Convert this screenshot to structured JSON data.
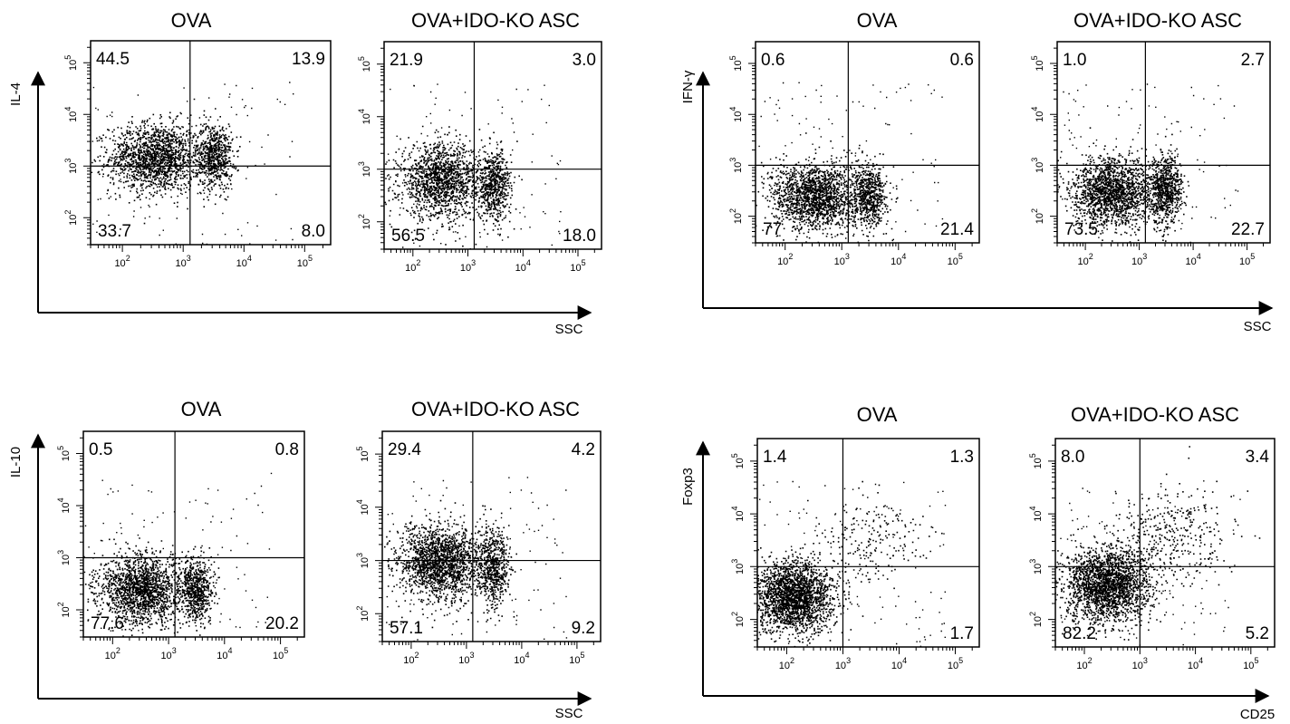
{
  "chart_data": [
    {
      "type": "scatter",
      "description_group": "IL-4 vs SSC",
      "ylabel": "IL-4",
      "xlabel": "SSC",
      "x_scale": "log",
      "y_scale": "log",
      "x_tick_labels": [
        "10^2",
        "10^3",
        "10^4",
        "10^5"
      ],
      "y_tick_labels": [
        "10^2",
        "10^3",
        "10^4",
        "10^5"
      ],
      "panels": [
        {
          "title": "OVA",
          "gate": {
            "x": 1300,
            "y": 1000
          },
          "quadrants": {
            "upper_left": "44.5",
            "upper_right": "13.9",
            "lower_left": "33.7",
            "lower_right": "8.0"
          },
          "clusters": [
            {
              "x": 350,
              "y": 1500,
              "spread_x": 0.38,
              "spread_y": 0.33,
              "n": 1600
            },
            {
              "x": 3200,
              "y": 1600,
              "spread_x": 0.15,
              "spread_y": 0.32,
              "n": 650
            }
          ]
        },
        {
          "title": "OVA+IDO-KO ASC",
          "gate": {
            "x": 1300,
            "y": 1000
          },
          "quadrants": {
            "upper_left": "21.9",
            "upper_right": "3.0",
            "lower_left": "56.5",
            "lower_right": "18.0"
          },
          "clusters": [
            {
              "x": 320,
              "y": 600,
              "spread_x": 0.38,
              "spread_y": 0.35,
              "n": 1500
            },
            {
              "x": 3000,
              "y": 500,
              "spread_x": 0.15,
              "spread_y": 0.33,
              "n": 600
            }
          ]
        }
      ]
    },
    {
      "type": "scatter",
      "description_group": "IFN-γ vs SSC",
      "ylabel": "IFN-γ",
      "xlabel": "SSC",
      "x_scale": "log",
      "y_scale": "log",
      "x_tick_labels": [
        "10^2",
        "10^3",
        "10^4",
        "10^5"
      ],
      "y_tick_labels": [
        "10^2",
        "10^3",
        "10^4",
        "10^5"
      ],
      "panels": [
        {
          "title": "OVA",
          "gate": {
            "x": 1300,
            "y": 1000
          },
          "quadrants": {
            "upper_left": "0.6",
            "upper_right": "0.6",
            "lower_left": "77",
            "lower_right": "21.4"
          },
          "clusters": [
            {
              "x": 330,
              "y": 250,
              "spread_x": 0.38,
              "spread_y": 0.33,
              "n": 1700
            },
            {
              "x": 3000,
              "y": 250,
              "spread_x": 0.15,
              "spread_y": 0.3,
              "n": 650
            }
          ]
        },
        {
          "title": "OVA+IDO-KO ASC",
          "gate": {
            "x": 1300,
            "y": 1000
          },
          "quadrants": {
            "upper_left": "1.0",
            "upper_right": "2.7",
            "lower_left": "73.5",
            "lower_right": "22.7"
          },
          "clusters": [
            {
              "x": 330,
              "y": 300,
              "spread_x": 0.38,
              "spread_y": 0.33,
              "n": 1700
            },
            {
              "x": 3000,
              "y": 350,
              "spread_x": 0.15,
              "spread_y": 0.33,
              "n": 750
            }
          ]
        }
      ]
    },
    {
      "type": "scatter",
      "description_group": "IL-10 vs SSC",
      "ylabel": "IL-10",
      "xlabel": "SSC",
      "x_scale": "log",
      "y_scale": "log",
      "x_tick_labels": [
        "10^2",
        "10^3",
        "10^4",
        "10^5"
      ],
      "y_tick_labels": [
        "10^2",
        "10^3",
        "10^4",
        "10^5"
      ],
      "panels": [
        {
          "title": "OVA",
          "gate": {
            "x": 1300,
            "y": 1000
          },
          "quadrants": {
            "upper_left": "0.5",
            "upper_right": "0.8",
            "lower_left": "77.6",
            "lower_right": "20.2"
          },
          "clusters": [
            {
              "x": 330,
              "y": 250,
              "spread_x": 0.38,
              "spread_y": 0.33,
              "n": 1700
            },
            {
              "x": 3000,
              "y": 250,
              "spread_x": 0.15,
              "spread_y": 0.3,
              "n": 650
            }
          ]
        },
        {
          "title": "OVA+IDO-KO ASC",
          "gate": {
            "x": 1300,
            "y": 1000
          },
          "quadrants": {
            "upper_left": "29.4",
            "upper_right": "4.2",
            "lower_left": "57.1",
            "lower_right": "9.2"
          },
          "clusters": [
            {
              "x": 330,
              "y": 900,
              "spread_x": 0.38,
              "spread_y": 0.35,
              "n": 1800
            },
            {
              "x": 3000,
              "y": 800,
              "spread_x": 0.15,
              "spread_y": 0.35,
              "n": 600
            }
          ]
        }
      ]
    },
    {
      "type": "scatter",
      "description_group": "Foxp3 vs CD25",
      "ylabel": "Foxp3",
      "xlabel": "CD25",
      "x_scale": "log",
      "y_scale": "log",
      "x_tick_labels": [
        "10^2",
        "10^3",
        "10^4",
        "10^5"
      ],
      "y_tick_labels": [
        "10^2",
        "10^3",
        "10^4",
        "10^5"
      ],
      "panels": [
        {
          "title": "OVA",
          "gate": {
            "x": 1000,
            "y": 1000
          },
          "quadrants": {
            "upper_left": "1.4",
            "upper_right": "1.3",
            "lower_left": "",
            "lower_right": "1.7"
          },
          "clusters": [
            {
              "x": 130,
              "y": 280,
              "spread_x": 0.35,
              "spread_y": 0.33,
              "n": 2200
            },
            {
              "x": 3000,
              "y": 3000,
              "spread_x": 0.5,
              "spread_y": 0.45,
              "n": 200
            }
          ]
        },
        {
          "title": "OVA+IDO-KO ASC",
          "gate": {
            "x": 1000,
            "y": 1000
          },
          "quadrants": {
            "upper_left": "8.0",
            "upper_right": "3.4",
            "lower_left": "82.2",
            "lower_right": "5.2"
          },
          "clusters": [
            {
              "x": 250,
              "y": 450,
              "spread_x": 0.38,
              "spread_y": 0.36,
              "n": 2200
            },
            {
              "x": 4000,
              "y": 4000,
              "spread_x": 0.5,
              "spread_y": 0.45,
              "n": 350
            }
          ]
        }
      ]
    }
  ]
}
